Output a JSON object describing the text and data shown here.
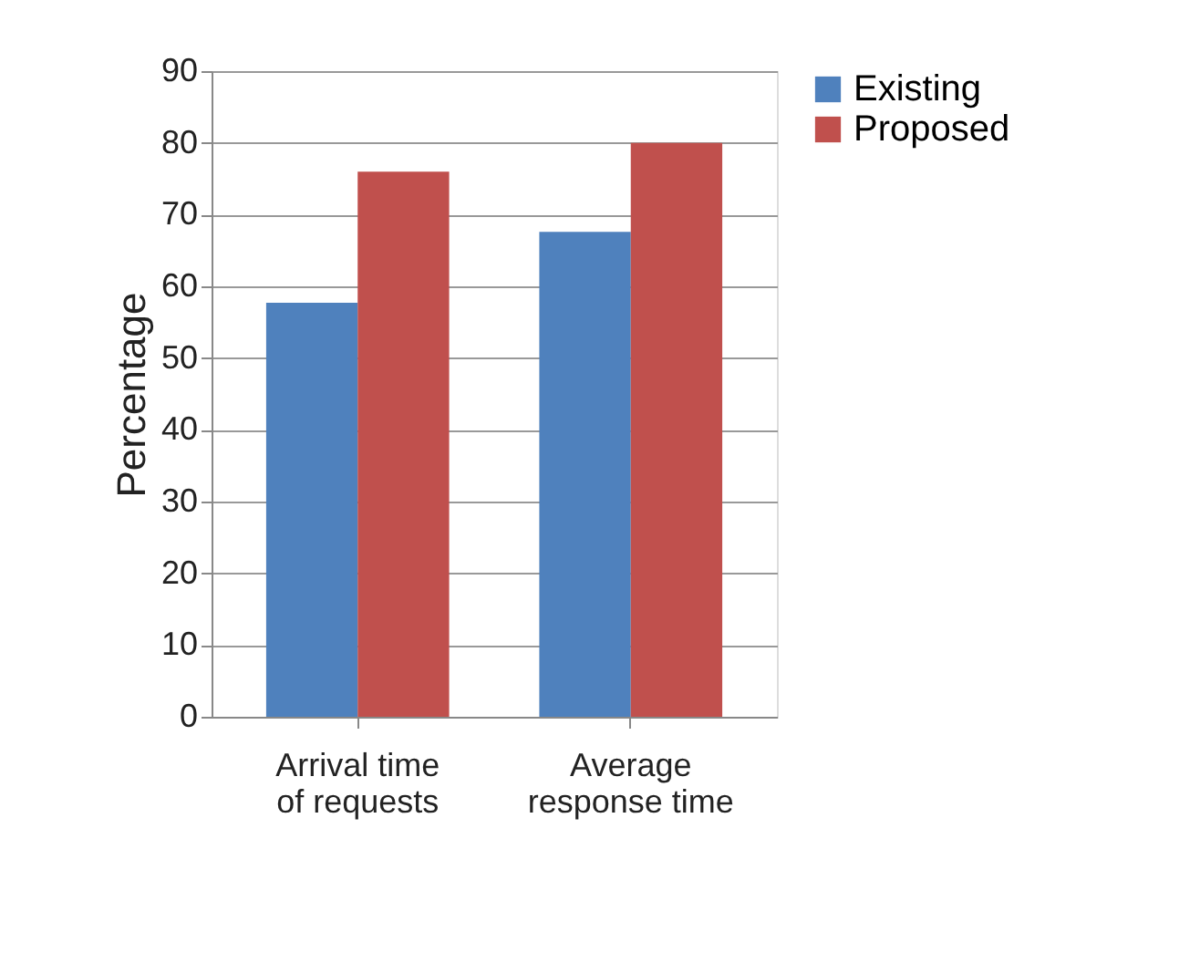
{
  "chart_data": {
    "type": "bar",
    "categories": [
      "Arrival time of requests",
      "Average response time"
    ],
    "series": [
      {
        "name": "Existing",
        "color": "#4f81bd",
        "values": [
          57.7,
          67.6
        ]
      },
      {
        "name": "Proposed",
        "color": "#c0504d",
        "values": [
          76,
          80
        ]
      }
    ],
    "ylabel": "Percentage",
    "ylim": [
      0,
      90
    ],
    "yticks": [
      0,
      10,
      20,
      30,
      40,
      50,
      60,
      70,
      80,
      90
    ],
    "grid": "y",
    "legend": "right"
  }
}
